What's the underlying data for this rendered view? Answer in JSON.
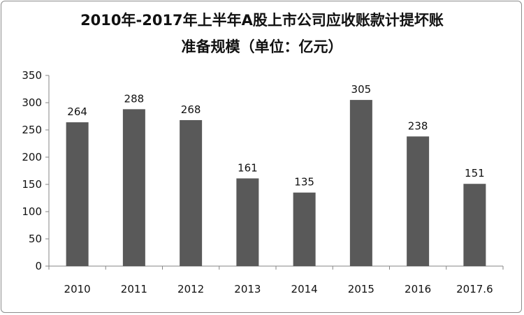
{
  "chart_data": {
    "type": "bar",
    "title_line1": "2010年-2017年上半年A股上市公司应收账款计提坏账",
    "title_line2": "准备规模（单位：亿元）",
    "categories": [
      "2010",
      "2011",
      "2012",
      "2013",
      "2014",
      "2015",
      "2016",
      "2017.6"
    ],
    "values": [
      264,
      288,
      268,
      161,
      135,
      305,
      238,
      151
    ],
    "ylim": [
      0,
      350
    ],
    "yticks": [
      0,
      50,
      100,
      150,
      200,
      250,
      300,
      350
    ],
    "xlabel": "",
    "ylabel": "",
    "grid": false,
    "legend": "none",
    "bar_color": "#595959",
    "axis_color": "#868686"
  }
}
